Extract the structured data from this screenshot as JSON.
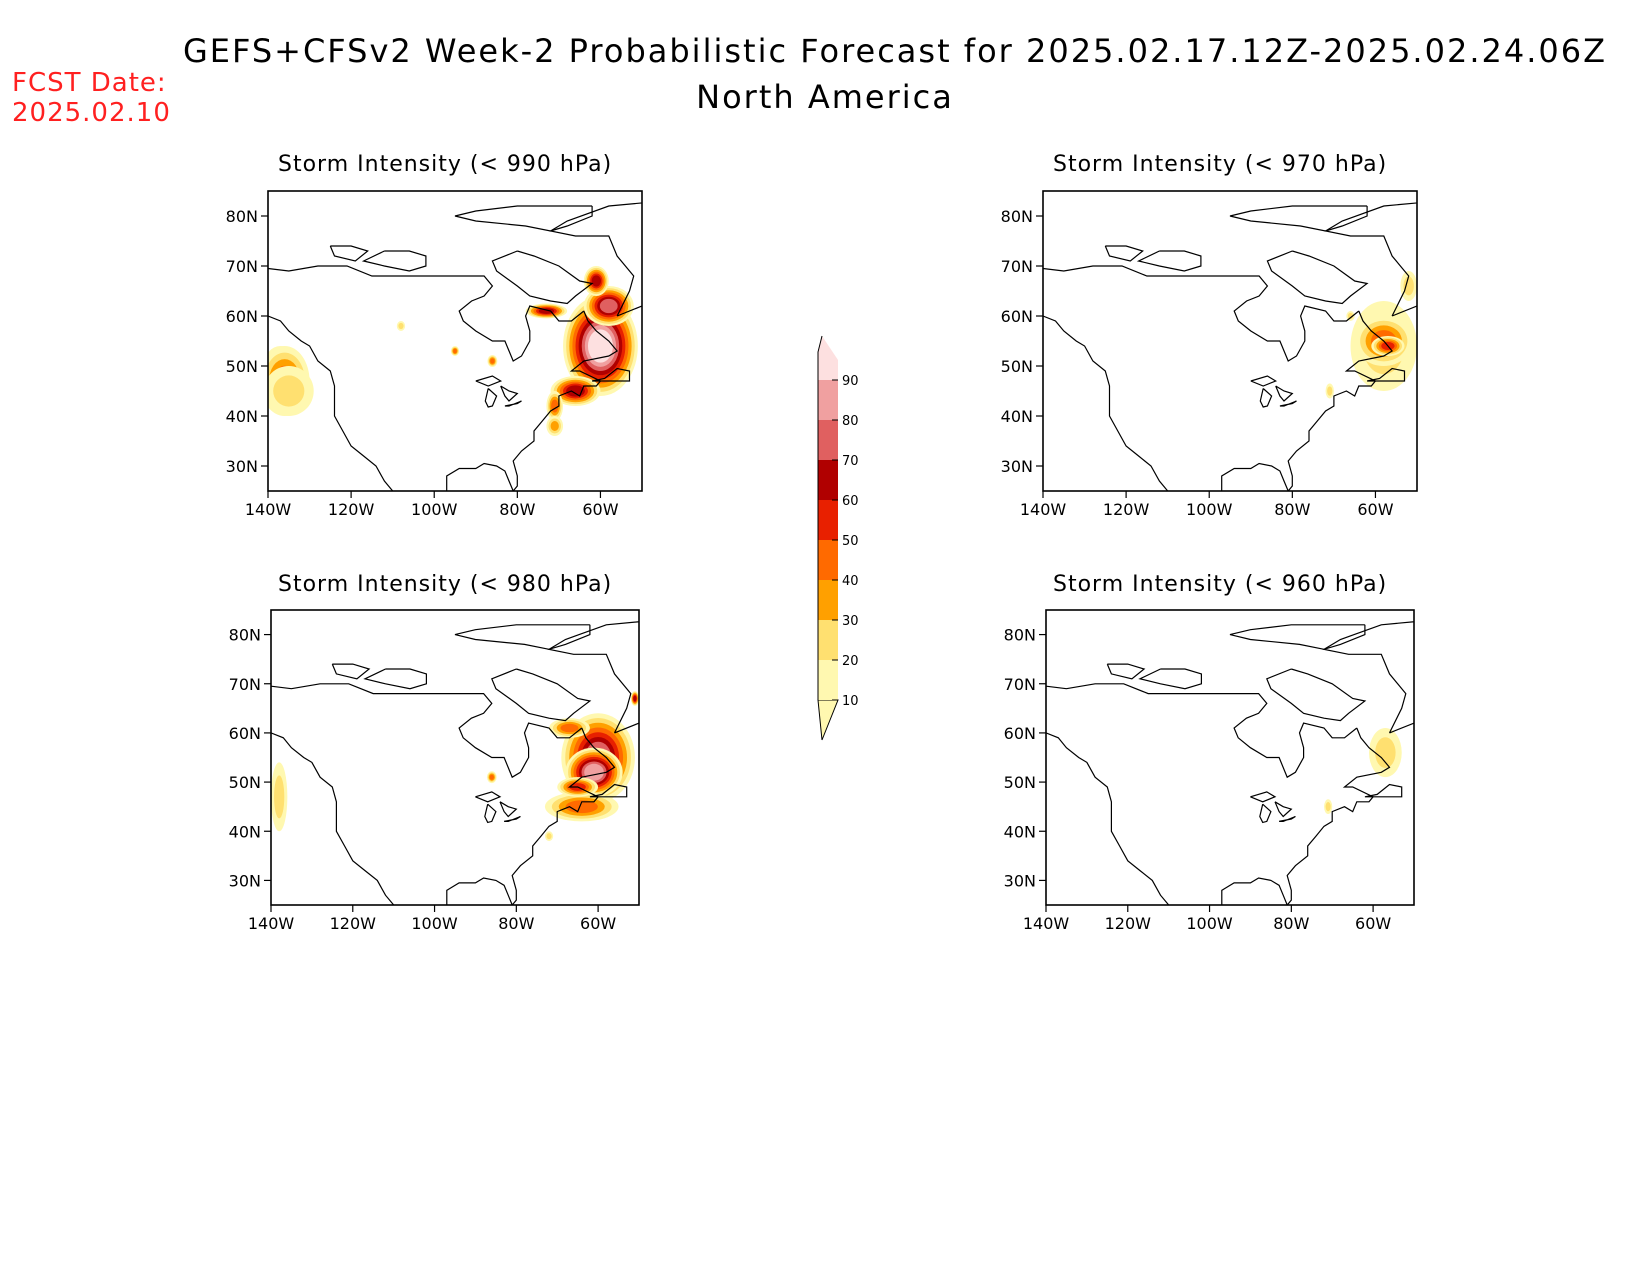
{
  "header": {
    "title": "GEFS+CFSv2 Week-2 Probabilistic Forecast for 2025.02.17.12Z-2025.02.24.06Z",
    "subtitle": "North America",
    "fcst_label": "FCST Date:",
    "fcst_date": "2025.02.10",
    "fcst_color": "#ff2020"
  },
  "axes": {
    "lat_ticks": [
      "30N",
      "40N",
      "50N",
      "60N",
      "70N",
      "80N"
    ],
    "lat_values": [
      30,
      40,
      50,
      60,
      70,
      80
    ],
    "lon_ticks": [
      "140W",
      "120W",
      "100W",
      "80W",
      "60W"
    ],
    "lon_values": [
      -140,
      -120,
      -100,
      -80,
      -60
    ],
    "lon_range": [
      -140,
      -50
    ],
    "lat_range": [
      25,
      85
    ]
  },
  "colorbar": {
    "levels": [
      "10",
      "20",
      "30",
      "40",
      "50",
      "60",
      "70",
      "80",
      "90"
    ],
    "colors": [
      "#fff8b0",
      "#ffe070",
      "#ffa000",
      "#ff6a00",
      "#e82000",
      "#b00000",
      "#e06060",
      "#f0a0a0",
      "#fde0e0"
    ]
  },
  "panels": [
    {
      "id": "p990",
      "title": "Storm Intensity (< 990 hPa)",
      "blobs": [
        {
          "lon": -137,
          "lat": 50,
          "rlon": 4,
          "rlat": 4,
          "level": 5
        },
        {
          "lon": -136,
          "lat": 47,
          "rlon": 6,
          "rlat": 7,
          "level": 3
        },
        {
          "lon": -135,
          "lat": 45,
          "rlon": 6,
          "rlat": 5,
          "level": 1
        },
        {
          "lon": -60,
          "lat": 54,
          "rlon": 9,
          "rlat": 10,
          "level": 8
        },
        {
          "lon": -58,
          "lat": 62,
          "rlon": 6,
          "rlat": 4,
          "level": 6
        },
        {
          "lon": -61,
          "lat": 67,
          "rlon": 3,
          "rlat": 3,
          "level": 5
        },
        {
          "lon": -73,
          "lat": 61,
          "rlon": 5,
          "rlat": 1.5,
          "level": 5
        },
        {
          "lon": -66,
          "lat": 45,
          "rlon": 6,
          "rlat": 3,
          "level": 5
        },
        {
          "lon": -71,
          "lat": 42,
          "rlon": 2,
          "rlat": 3,
          "level": 3
        },
        {
          "lon": -71,
          "lat": 38,
          "rlon": 2,
          "rlat": 2,
          "level": 2
        },
        {
          "lon": -108,
          "lat": 58,
          "rlon": 1,
          "rlat": 1,
          "level": 1
        },
        {
          "lon": -95,
          "lat": 53,
          "rlon": 1,
          "rlat": 1,
          "level": 3
        },
        {
          "lon": -86,
          "lat": 51,
          "rlon": 1.2,
          "rlat": 1.2,
          "level": 3
        }
      ]
    },
    {
      "id": "p970",
      "title": "Storm Intensity (< 970 hPa)",
      "blobs": [
        {
          "lon": -58,
          "lat": 54,
          "rlon": 8,
          "rlat": 9,
          "level": 1
        },
        {
          "lon": -58,
          "lat": 55,
          "rlon": 7,
          "rlat": 5,
          "level": 3
        },
        {
          "lon": -57,
          "lat": 54,
          "rlon": 4,
          "rlat": 2,
          "level": 4
        },
        {
          "lon": -52,
          "lat": 66,
          "rlon": 2,
          "rlat": 3,
          "level": 1
        },
        {
          "lon": -66,
          "lat": 60,
          "rlon": 1,
          "rlat": 1,
          "level": 1
        },
        {
          "lon": -71,
          "lat": 45,
          "rlon": 1,
          "rlat": 1.5,
          "level": 1
        }
      ]
    },
    {
      "id": "p980",
      "title": "Storm Intensity (< 980 hPa)",
      "blobs": [
        {
          "lon": -138,
          "lat": 47,
          "rlon": 2,
          "rlat": 7,
          "level": 1
        },
        {
          "lon": -60,
          "lat": 55,
          "rlon": 9,
          "rlat": 9,
          "level": 6
        },
        {
          "lon": -61,
          "lat": 52,
          "rlon": 7,
          "rlat": 5,
          "level": 7
        },
        {
          "lon": -67,
          "lat": 61,
          "rlon": 5,
          "rlat": 2,
          "level": 3
        },
        {
          "lon": -64,
          "lat": 45,
          "rlon": 9,
          "rlat": 3,
          "level": 3
        },
        {
          "lon": -65,
          "lat": 49,
          "rlon": 5,
          "rlat": 2,
          "level": 4
        },
        {
          "lon": -51,
          "lat": 67,
          "rlon": 1,
          "rlat": 1.5,
          "level": 5
        },
        {
          "lon": -86,
          "lat": 51,
          "rlon": 1.2,
          "rlat": 1.2,
          "level": 3
        },
        {
          "lon": -72,
          "lat": 39,
          "rlon": 1,
          "rlat": 1,
          "level": 1
        }
      ]
    },
    {
      "id": "p960",
      "title": "Storm Intensity (< 960 hPa)",
      "blobs": [
        {
          "lon": -57,
          "lat": 56,
          "rlon": 4,
          "rlat": 5,
          "level": 1
        },
        {
          "lon": -71,
          "lat": 45,
          "rlon": 1,
          "rlat": 1.5,
          "level": 1
        }
      ]
    }
  ]
}
